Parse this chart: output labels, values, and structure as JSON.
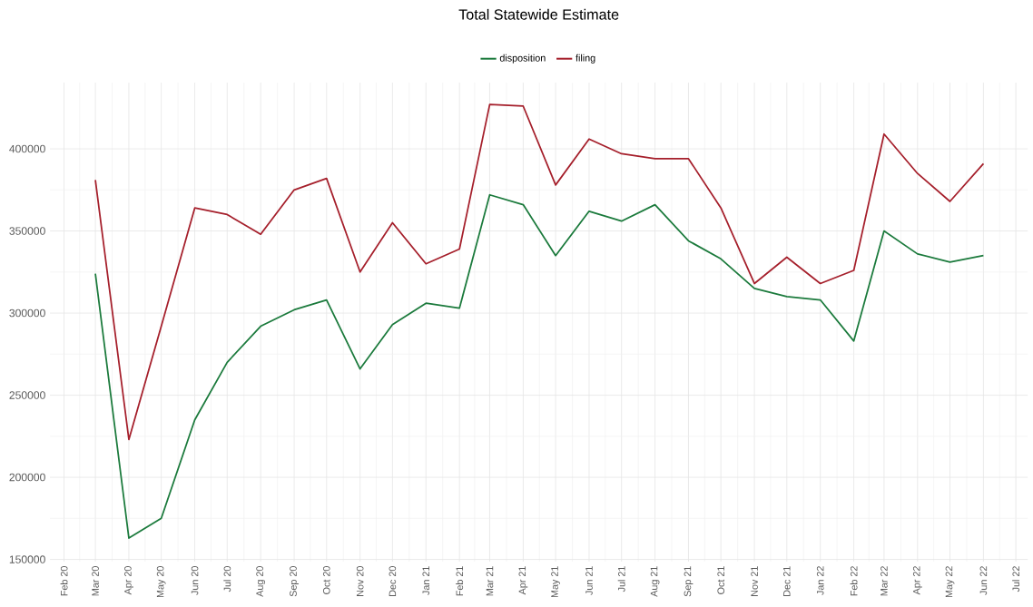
{
  "chart_data": {
    "type": "line",
    "title": "Total Statewide Estimate",
    "legend": "top",
    "grid": true,
    "x": [
      "2020-03",
      "2020-04",
      "2020-05",
      "2020-06",
      "2020-07",
      "2020-08",
      "2020-09",
      "2020-10",
      "2020-11",
      "2020-12",
      "2021-01",
      "2021-02",
      "2021-03",
      "2021-04",
      "2021-05",
      "2021-06",
      "2021-07",
      "2021-08",
      "2021-09",
      "2021-10",
      "2021-11",
      "2021-12",
      "2022-01",
      "2022-02",
      "2022-03",
      "2022-04",
      "2022-05",
      "2022-06"
    ],
    "series": [
      {
        "name": "disposition",
        "color": "#1b7a3c",
        "values": [
          324000,
          163000,
          175000,
          235000,
          270000,
          292000,
          302000,
          308000,
          266000,
          293000,
          306000,
          303000,
          372000,
          366000,
          335000,
          362000,
          356000,
          366000,
          344000,
          333000,
          315000,
          310000,
          308000,
          283000,
          350000,
          336000,
          331000,
          335000
        ]
      },
      {
        "name": "filing",
        "color": "#a51f2b",
        "values": [
          381000,
          223000,
          292000,
          364000,
          360000,
          348000,
          375000,
          382000,
          325000,
          355000,
          330000,
          339000,
          427000,
          426000,
          378000,
          406000,
          397000,
          394000,
          394000,
          364000,
          318000,
          334000,
          318000,
          326000,
          409000,
          385000,
          368000,
          391000
        ]
      }
    ],
    "xlim": [
      "2020-01-19",
      "2022-07-12"
    ],
    "xticks": [
      {
        "value": "2020-02",
        "label": "Feb 20"
      },
      {
        "value": "2020-03",
        "label": "Mar 20"
      },
      {
        "value": "2020-04",
        "label": "Apr 20"
      },
      {
        "value": "2020-05",
        "label": "May 20"
      },
      {
        "value": "2020-06",
        "label": "Jun 20"
      },
      {
        "value": "2020-07",
        "label": "Jul 20"
      },
      {
        "value": "2020-08",
        "label": "Aug 20"
      },
      {
        "value": "2020-09",
        "label": "Sep 20"
      },
      {
        "value": "2020-10",
        "label": "Oct 20"
      },
      {
        "value": "2020-11",
        "label": "Nov 20"
      },
      {
        "value": "2020-12",
        "label": "Dec 20"
      },
      {
        "value": "2021-01",
        "label": "Jan 21"
      },
      {
        "value": "2021-02",
        "label": "Feb 21"
      },
      {
        "value": "2021-03",
        "label": "Mar 21"
      },
      {
        "value": "2021-04",
        "label": "Apr 21"
      },
      {
        "value": "2021-05",
        "label": "May 21"
      },
      {
        "value": "2021-06",
        "label": "Jun 21"
      },
      {
        "value": "2021-07",
        "label": "Jul 21"
      },
      {
        "value": "2021-08",
        "label": "Aug 21"
      },
      {
        "value": "2021-09",
        "label": "Sep 21"
      },
      {
        "value": "2021-10",
        "label": "Oct 21"
      },
      {
        "value": "2021-11",
        "label": "Nov 21"
      },
      {
        "value": "2021-12",
        "label": "Dec 21"
      },
      {
        "value": "2022-01",
        "label": "Jan 22"
      },
      {
        "value": "2022-02",
        "label": "Feb 22"
      },
      {
        "value": "2022-03",
        "label": "Mar 22"
      },
      {
        "value": "2022-04",
        "label": "Apr 22"
      },
      {
        "value": "2022-05",
        "label": "May 22"
      },
      {
        "value": "2022-06",
        "label": "Jun 22"
      },
      {
        "value": "2022-07",
        "label": "Jul 22"
      }
    ],
    "ylim": [
      148700,
      440300
    ],
    "yticks": [
      150000,
      200000,
      250000,
      300000,
      350000,
      400000
    ]
  }
}
